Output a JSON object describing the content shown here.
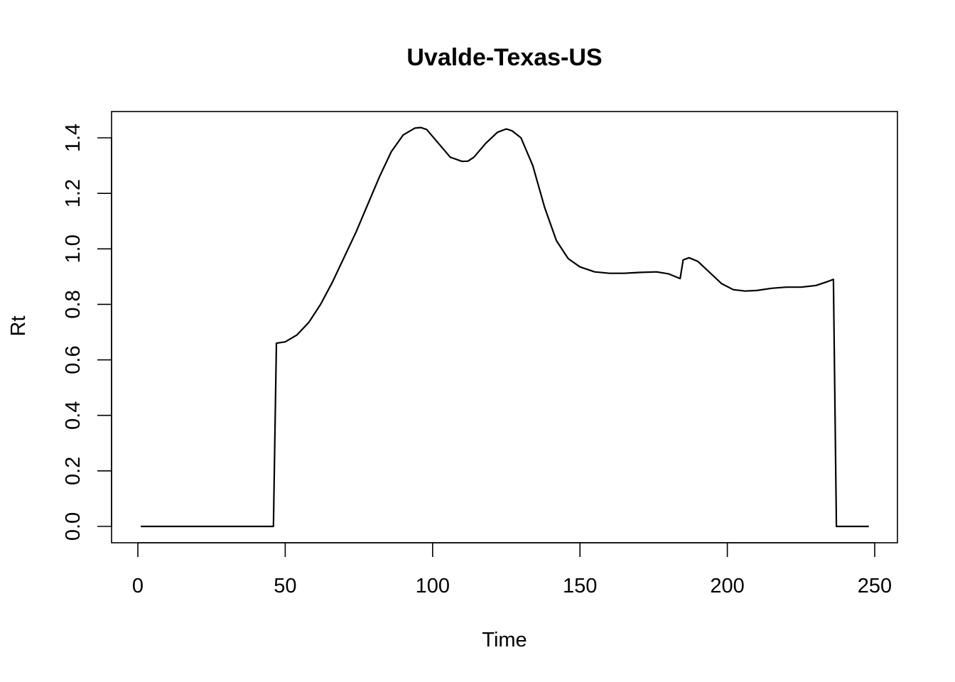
{
  "chart_data": {
    "type": "line",
    "title": "Uvalde-Texas-US",
    "xlabel": "Time",
    "ylabel": "Rt",
    "xlim": [
      1,
      248
    ],
    "ylim": [
      0,
      1.4
    ],
    "x_ticks": [
      0,
      50,
      100,
      150,
      200,
      250
    ],
    "x_tick_labels": [
      "0",
      "50",
      "100",
      "150",
      "200",
      "250"
    ],
    "y_ticks": [
      0,
      0.2,
      0.4,
      0.6,
      0.8,
      1.0,
      1.2,
      1.4
    ],
    "y_tick_labels": [
      "0.0",
      "0.2",
      "0.4",
      "0.6",
      "0.8",
      "1.0",
      "1.2",
      "1.4"
    ],
    "grid": false,
    "series": [
      {
        "color": "#000000",
        "x": [
          1,
          46,
          47,
          50,
          54,
          58,
          62,
          66,
          70,
          74,
          78,
          82,
          86,
          90,
          94,
          96,
          98,
          102,
          106,
          110,
          112,
          114,
          118,
          122,
          125,
          127,
          130,
          134,
          138,
          142,
          146,
          150,
          155,
          160,
          165,
          170,
          176,
          180,
          184,
          185,
          187,
          190,
          194,
          198,
          202,
          206,
          210,
          215,
          220,
          225,
          230,
          234,
          236,
          237,
          248
        ],
        "y": [
          0,
          0,
          0.66,
          0.665,
          0.69,
          0.735,
          0.8,
          0.88,
          0.97,
          1.06,
          1.16,
          1.26,
          1.35,
          1.41,
          1.435,
          1.437,
          1.43,
          1.38,
          1.33,
          1.315,
          1.316,
          1.33,
          1.38,
          1.42,
          1.432,
          1.425,
          1.4,
          1.3,
          1.15,
          1.03,
          0.965,
          0.935,
          0.917,
          0.912,
          0.912,
          0.915,
          0.917,
          0.91,
          0.893,
          0.96,
          0.968,
          0.955,
          0.915,
          0.875,
          0.853,
          0.848,
          0.85,
          0.858,
          0.862,
          0.862,
          0.868,
          0.882,
          0.89,
          0,
          0
        ]
      }
    ]
  }
}
